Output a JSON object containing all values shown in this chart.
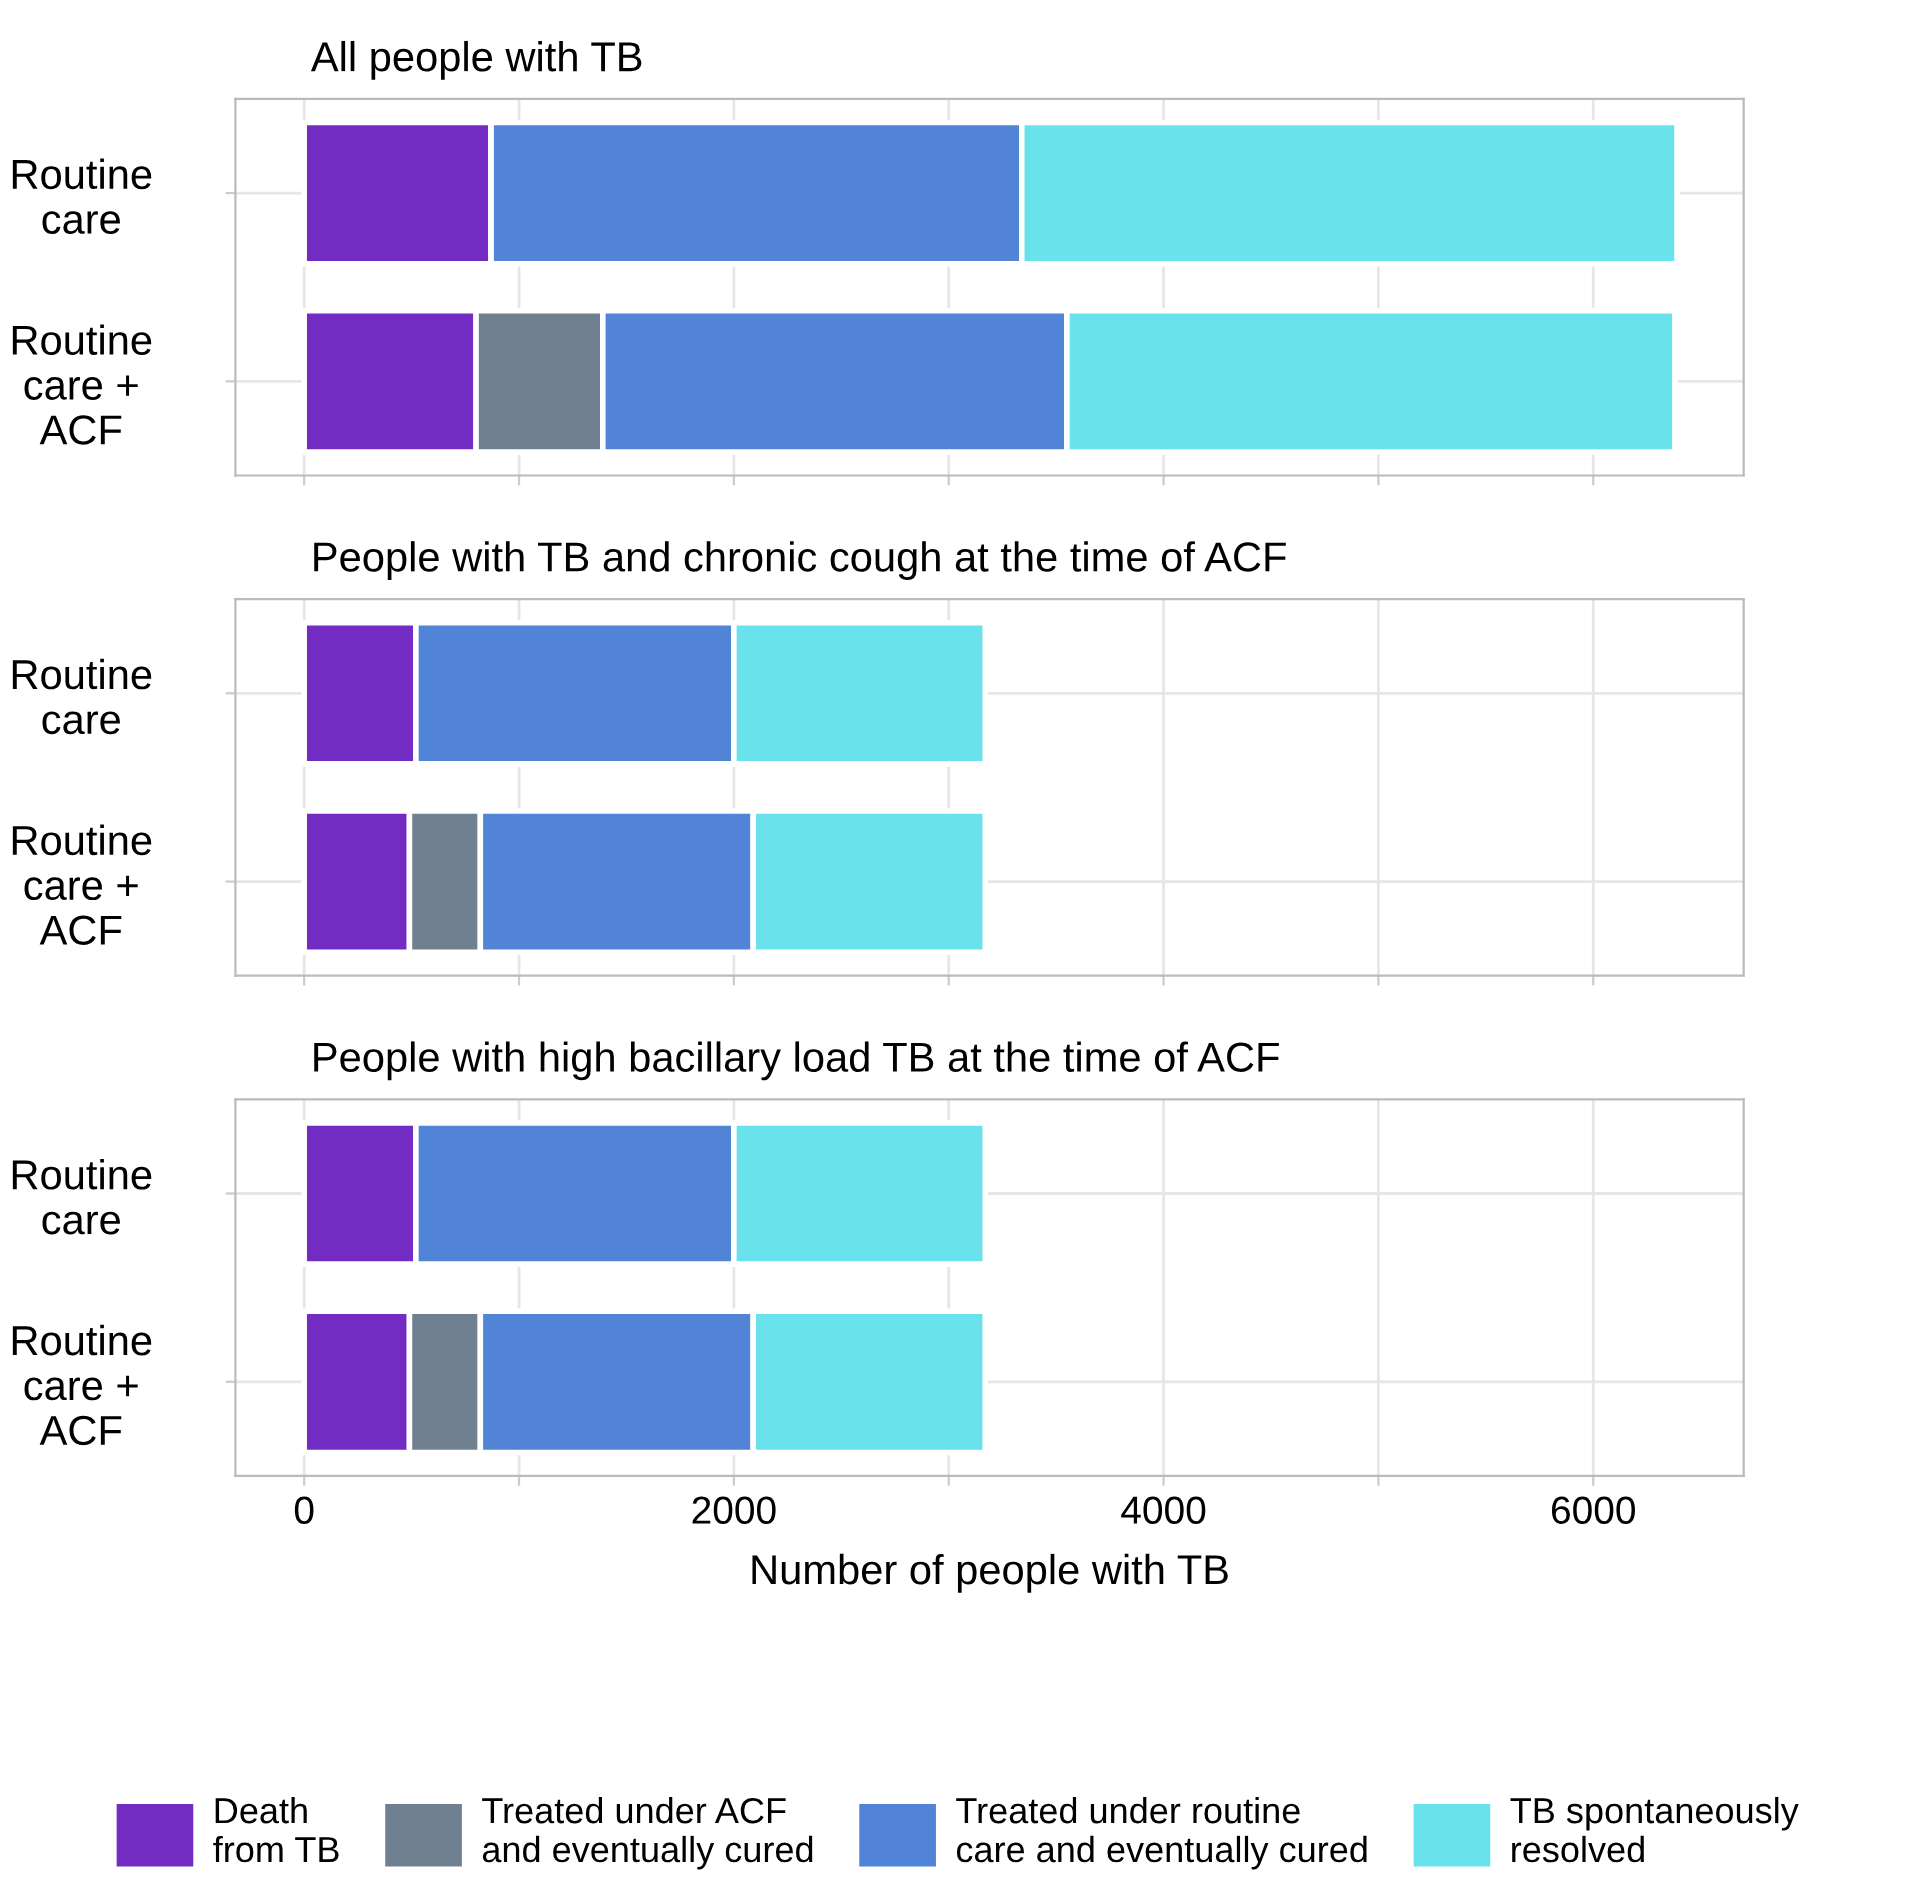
{
  "chart_data": [
    {
      "type": "bar",
      "orientation": "horizontal",
      "stacked": true,
      "title": "All people with TB",
      "categories": [
        "Routine\ncare",
        "Routine\ncare +\nACF"
      ],
      "series": [
        {
          "color": "#722cc2",
          "values": [
            870,
            800
          ]
        },
        {
          "color": "#718091",
          "values": [
            0,
            590
          ]
        },
        {
          "color": "#5183d6",
          "values": [
            2470,
            2160
          ]
        },
        {
          "color": "#69e2eb",
          "values": [
            3050,
            2830
          ]
        }
      ],
      "xlim": [
        -320,
        6700
      ],
      "xticks": [
        {
          "value": 0,
          "label": null
        },
        {
          "value": 1000,
          "label": null
        },
        {
          "value": 2000,
          "label": null
        },
        {
          "value": 3000,
          "label": null
        },
        {
          "value": 4000,
          "label": null
        },
        {
          "value": 5000,
          "label": null
        },
        {
          "value": 6000,
          "label": null
        }
      ],
      "grid": true,
      "tick_labels": "y"
    },
    {
      "type": "bar",
      "orientation": "horizontal",
      "stacked": true,
      "title": "People with TB and chronic cough at the time of ACF",
      "categories": [
        "Routine\ncare",
        "Routine\ncare +\nACF"
      ],
      "series": [
        {
          "color": "#722cc2",
          "values": [
            520,
            490
          ]
        },
        {
          "color": "#718091",
          "values": [
            0,
            330
          ]
        },
        {
          "color": "#5183d6",
          "values": [
            1480,
            1270
          ]
        },
        {
          "color": "#69e2eb",
          "values": [
            1170,
            1080
          ]
        }
      ],
      "xlim": [
        -320,
        6700
      ],
      "xticks": [
        {
          "value": 0,
          "label": null
        },
        {
          "value": 1000,
          "label": null
        },
        {
          "value": 2000,
          "label": null
        },
        {
          "value": 3000,
          "label": null
        },
        {
          "value": 4000,
          "label": null
        },
        {
          "value": 5000,
          "label": null
        },
        {
          "value": 6000,
          "label": null
        }
      ],
      "grid": true,
      "tick_labels": "y"
    },
    {
      "type": "bar",
      "orientation": "horizontal",
      "stacked": true,
      "title": "People with high bacillary load TB at the time of ACF",
      "xlabel": "Number of people with TB",
      "categories": [
        "Routine\ncare",
        "Routine\ncare +\nACF"
      ],
      "series": [
        {
          "name": "Death\nfrom TB",
          "color": "#722cc2",
          "values": [
            520,
            490
          ]
        },
        {
          "name": "Treated under ACF\nand eventually cured",
          "color": "#718091",
          "values": [
            0,
            330
          ]
        },
        {
          "name": "Treated under routine\ncare and eventually cured",
          "color": "#5183d6",
          "values": [
            1480,
            1270
          ]
        },
        {
          "name": "TB spontaneously\nresolved",
          "color": "#69e2eb",
          "values": [
            1170,
            1080
          ]
        }
      ],
      "xlim": [
        -320,
        6700
      ],
      "xticks": [
        0,
        {
          "value": 1000,
          "label": null
        },
        2000,
        {
          "value": 3000,
          "label": null
        },
        4000,
        {
          "value": 5000,
          "label": null
        },
        6000
      ],
      "grid": true,
      "legend": "bottom"
    }
  ]
}
